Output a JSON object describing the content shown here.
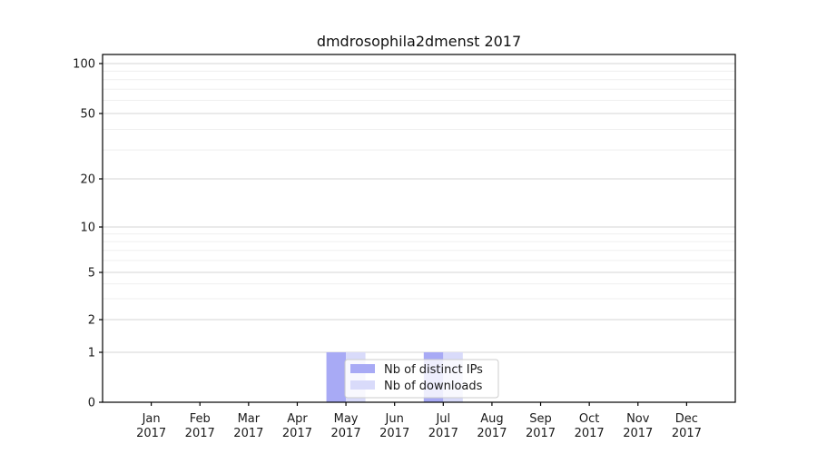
{
  "chart_data": {
    "type": "bar",
    "title": "dmdrosophila2dmenst 2017",
    "categories": [
      "Jan",
      "Feb",
      "Mar",
      "Apr",
      "May",
      "Jun",
      "Jul",
      "Aug",
      "Sep",
      "Oct",
      "Nov",
      "Dec"
    ],
    "category_year": "2017",
    "series": [
      {
        "name": "Nb of distinct IPs",
        "color": "#a8aaf5",
        "values": [
          0,
          0,
          0,
          0,
          1,
          0,
          1,
          0,
          0,
          0,
          0,
          0
        ]
      },
      {
        "name": "Nb of downloads",
        "color": "#d9dbfa",
        "values": [
          0,
          0,
          0,
          0,
          1,
          0,
          1,
          0,
          0,
          0,
          0,
          0
        ]
      }
    ],
    "xlabel": "",
    "ylabel": "",
    "yscale": "symlog",
    "ylim": [
      0,
      100
    ],
    "y_ticks": [
      0,
      1,
      2,
      5,
      10,
      20,
      50,
      100
    ],
    "grid": true,
    "legend": {
      "labels": [
        "Nb of distinct IPs",
        "Nb of downloads"
      ],
      "position": "lower center"
    }
  },
  "colors": {
    "spine": "#000000",
    "tick_text": "#1a1a1a",
    "grid_major": "#d4d4d4",
    "grid_minor": "#efefef",
    "legend_bg": "rgba(255,255,255,0.8)",
    "legend_border": "#cccccc"
  }
}
